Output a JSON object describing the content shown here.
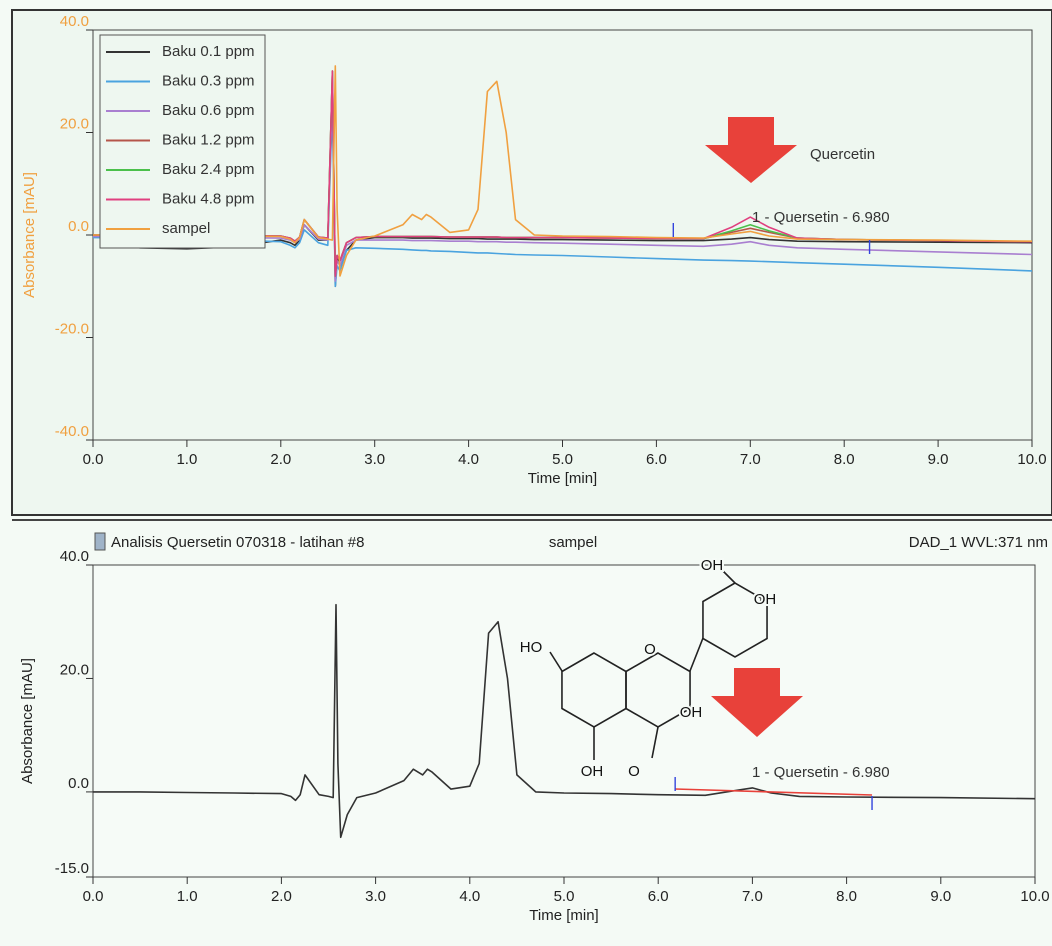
{
  "chart_data": [
    {
      "type": "line",
      "xlabel": "Time [min]",
      "ylabel": "Absorbance [mAU]",
      "axis_color": "#f0a040",
      "annotations": [
        "Quercetin",
        "1 - Quersetin - 6.980"
      ],
      "legend": "upper left",
      "integration": [
        6.18,
        8.27
      ],
      "x": [
        0,
        0.5,
        1.0,
        1.5,
        2.0,
        2.1,
        2.15,
        2.2,
        2.25,
        2.4,
        2.5,
        2.55,
        2.58,
        2.6,
        2.63,
        2.7,
        2.8,
        3.0,
        3.3,
        3.4,
        3.5,
        3.55,
        3.6,
        3.8,
        4.0,
        4.1,
        4.2,
        4.3,
        4.4,
        4.5,
        4.7,
        5.0,
        5.5,
        6.0,
        6.5,
        6.8,
        7.0,
        7.2,
        7.5,
        8.0,
        9.0,
        10.0
      ],
      "series": [
        {
          "name": "Baku 0.1 ppm",
          "color": "#333333",
          "values": [
            0,
            -2.5,
            -2.7,
            -2.3,
            -1,
            -1.5,
            -2,
            -1,
            2,
            -1,
            -1,
            30,
            -10,
            -4,
            -6,
            -3,
            -1,
            -0.5,
            -0.5,
            -0.6,
            -0.6,
            -0.6,
            -0.6,
            -0.7,
            -0.7,
            -0.7,
            -0.8,
            -0.8,
            -0.8,
            -0.8,
            -0.9,
            -0.9,
            -1,
            -1.1,
            -1.1,
            -0.8,
            -0.5,
            -0.9,
            -1.2,
            -1.3,
            -1.4,
            -1.5
          ]
        },
        {
          "name": "Baku 0.3 ppm",
          "color": "#4aa3df",
          "values": [
            -0.5,
            -0.6,
            -0.8,
            -1,
            -1.3,
            -2,
            -2.5,
            -1.5,
            1,
            -1.5,
            -2,
            25,
            -10,
            -6,
            -7,
            -3,
            -2.5,
            -2.6,
            -2.8,
            -2.9,
            -3,
            -3,
            -3.1,
            -3.2,
            -3.4,
            -3.5,
            -3.5,
            -3.6,
            -3.7,
            -3.8,
            -3.9,
            -4,
            -4.3,
            -4.6,
            -4.9,
            -5,
            -5.1,
            -5.2,
            -5.4,
            -5.7,
            -6.3,
            -7
          ]
        },
        {
          "name": "Baku 0.6 ppm",
          "color": "#a97fd0",
          "values": [
            -0.3,
            -0.3,
            -0.4,
            -0.5,
            -0.6,
            -1,
            -1.5,
            -0.8,
            2,
            -0.8,
            -1,
            28,
            -9,
            -5,
            -6,
            -2,
            -1,
            -1,
            -1,
            -1.1,
            -1.1,
            -1.1,
            -1.1,
            -1.2,
            -1.2,
            -1.3,
            -1.3,
            -1.3,
            -1.4,
            -1.4,
            -1.5,
            -1.6,
            -1.8,
            -2,
            -2.2,
            -1.8,
            -1.3,
            -2,
            -2.5,
            -2.8,
            -3.3,
            -3.8
          ]
        },
        {
          "name": "Baku 1.2 ppm",
          "color": "#b5564a",
          "values": [
            0,
            0,
            -0.1,
            -0.1,
            -0.2,
            -0.6,
            -1.2,
            -0.4,
            3,
            -0.4,
            -0.6,
            32,
            -8,
            -4,
            -5,
            -1.5,
            -0.5,
            -0.3,
            -0.3,
            -0.3,
            -0.3,
            -0.3,
            -0.3,
            -0.4,
            -0.4,
            -0.4,
            -0.4,
            -0.4,
            -0.5,
            -0.5,
            -0.5,
            -0.5,
            -0.6,
            -0.7,
            -0.7,
            0.5,
            1.3,
            0.5,
            -0.6,
            -0.9,
            -1.1,
            -1.3
          ]
        },
        {
          "name": "Baku 2.4 ppm",
          "color": "#4bc04b",
          "values": [
            0,
            0,
            -0.1,
            -0.1,
            -0.2,
            -0.6,
            -1.2,
            -0.4,
            3,
            -0.4,
            -0.6,
            32,
            -8,
            -4,
            -5,
            -1.5,
            -0.5,
            -0.3,
            -0.3,
            -0.3,
            -0.3,
            -0.3,
            -0.3,
            -0.4,
            -0.4,
            -0.4,
            -0.4,
            -0.4,
            -0.5,
            -0.5,
            -0.5,
            -0.5,
            -0.6,
            -0.7,
            -0.7,
            0.8,
            2,
            0.8,
            -0.6,
            -0.9,
            -1.1,
            -1.3
          ]
        },
        {
          "name": "Baku 4.8 ppm",
          "color": "#e0407f",
          "values": [
            0,
            0,
            -0.1,
            -0.1,
            -0.2,
            -0.6,
            -1.2,
            -0.4,
            3,
            -0.4,
            -0.6,
            32,
            -8,
            -4,
            -5,
            -1.5,
            -0.5,
            -0.3,
            -0.3,
            -0.3,
            -0.3,
            -0.3,
            -0.3,
            -0.4,
            -0.4,
            -0.4,
            -0.4,
            -0.4,
            -0.5,
            -0.5,
            -0.5,
            -0.5,
            -0.6,
            -0.7,
            -0.7,
            1.5,
            3.5,
            1.5,
            -0.6,
            -0.9,
            -1.1,
            -1.3
          ]
        },
        {
          "name": "sampel",
          "color": "#f0a040",
          "values": [
            0,
            0,
            -0.1,
            -0.2,
            -0.3,
            -0.8,
            -1.5,
            -0.5,
            3,
            -0.5,
            -0.8,
            -1,
            33,
            5,
            -8,
            -4,
            -1,
            -0.2,
            2,
            4,
            3,
            4,
            3.5,
            0.5,
            1,
            5,
            28,
            30,
            20,
            3,
            0,
            -0.2,
            -0.3,
            -0.5,
            -0.6,
            0.2,
            0.7,
            -0.2,
            -0.8,
            -0.9,
            -1,
            -1.2
          ]
        }
      ],
      "xlim": [
        0,
        10
      ],
      "ylim": [
        -40,
        40
      ],
      "xticks": [
        {
          "value": 0,
          "label": "0.0"
        },
        {
          "value": 1,
          "label": "1.0"
        },
        {
          "value": 2,
          "label": "2.0"
        },
        {
          "value": 3,
          "label": "3.0"
        },
        {
          "value": 4,
          "label": "4.0"
        },
        {
          "value": 5,
          "label": "5.0"
        },
        {
          "value": 6,
          "label": "6.0"
        },
        {
          "value": 7,
          "label": "7.0"
        },
        {
          "value": 8,
          "label": "8.0"
        },
        {
          "value": 9,
          "label": "9.0"
        },
        {
          "value": 10,
          "label": "10.0"
        }
      ],
      "yticks": [
        {
          "value": 40,
          "label": "40.0"
        },
        {
          "value": 20,
          "label": "20.0"
        },
        {
          "value": 0,
          "label": "0.0"
        },
        {
          "value": -20,
          "label": "-20.0"
        },
        {
          "value": -40,
          "label": "-40.0"
        }
      ]
    },
    {
      "type": "line",
      "title": "Analisis Quersetin 070318 - latihan #8",
      "subtitle": "sampel",
      "detector": "DAD_1 WVL:371 nm",
      "xlabel": "Time [min]",
      "ylabel": "Absorbance [mAU]",
      "axis_color": "#222222",
      "annotations": [
        "1 - Quersetin - 6.980"
      ],
      "integration": [
        6.18,
        8.27
      ],
      "structure_labels": [
        "OH",
        "OH",
        "HO",
        "O",
        "OH",
        "OH",
        "O"
      ],
      "x": [
        0,
        0.5,
        1.0,
        1.5,
        2.0,
        2.1,
        2.15,
        2.2,
        2.25,
        2.4,
        2.5,
        2.55,
        2.58,
        2.6,
        2.63,
        2.7,
        2.8,
        3.0,
        3.3,
        3.4,
        3.5,
        3.55,
        3.6,
        3.8,
        4.0,
        4.1,
        4.2,
        4.3,
        4.4,
        4.5,
        4.7,
        5.0,
        5.5,
        6.0,
        6.5,
        6.8,
        7.0,
        7.2,
        7.5,
        8.0,
        9.0,
        10.0
      ],
      "series": [
        {
          "name": "sampel",
          "color": "#333333",
          "values": [
            0,
            0,
            -0.1,
            -0.2,
            -0.3,
            -0.8,
            -1.5,
            -0.5,
            3,
            -0.5,
            -0.8,
            -1,
            33,
            5,
            -8,
            -4,
            -1,
            -0.2,
            2,
            4,
            3,
            4,
            3.5,
            0.5,
            1,
            5,
            28,
            30,
            20,
            3,
            0,
            -0.2,
            -0.3,
            -0.5,
            -0.6,
            0.2,
            0.7,
            -0.2,
            -0.8,
            -0.9,
            -1,
            -1.2
          ]
        }
      ],
      "xlim": [
        0,
        10
      ],
      "ylim": [
        -15,
        40
      ],
      "xticks": [
        {
          "value": 0,
          "label": "0.0"
        },
        {
          "value": 1,
          "label": "1.0"
        },
        {
          "value": 2,
          "label": "2.0"
        },
        {
          "value": 3,
          "label": "3.0"
        },
        {
          "value": 4,
          "label": "4.0"
        },
        {
          "value": 5,
          "label": "5.0"
        },
        {
          "value": 6,
          "label": "6.0"
        },
        {
          "value": 7,
          "label": "7.0"
        },
        {
          "value": 8,
          "label": "8.0"
        },
        {
          "value": 9,
          "label": "9.0"
        },
        {
          "value": 10,
          "label": "10.0"
        }
      ],
      "yticks": [
        {
          "value": 40,
          "label": "40.0"
        },
        {
          "value": 20,
          "label": "20.0"
        },
        {
          "value": 0,
          "label": "0.0"
        },
        {
          "value": -15,
          "label": "-15.0"
        }
      ]
    }
  ]
}
